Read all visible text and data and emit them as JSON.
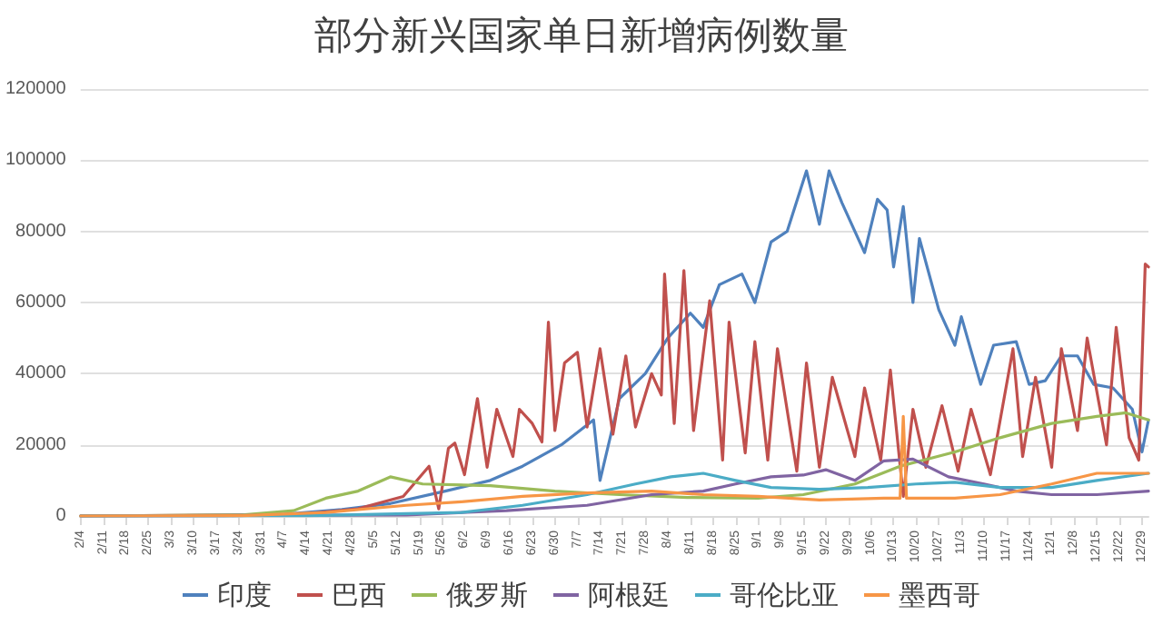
{
  "chart_data": {
    "type": "line",
    "title": "部分新兴国家单日新增病例数量",
    "xlim": [
      "--02-04",
      "--12-31"
    ],
    "xticks": [
      {
        "value": "--02-04",
        "label": "2/4"
      },
      {
        "value": "--02-11",
        "label": "2/11"
      },
      {
        "value": "--02-18",
        "label": "2/18"
      },
      {
        "value": "--02-25",
        "label": "2/25"
      },
      {
        "value": "--03-03",
        "label": "3/3"
      },
      {
        "value": "--03-10",
        "label": "3/10"
      },
      {
        "value": "--03-17",
        "label": "3/17"
      },
      {
        "value": "--03-24",
        "label": "3/24"
      },
      {
        "value": "--03-31",
        "label": "3/31"
      },
      {
        "value": "--04-07",
        "label": "4/7"
      },
      {
        "value": "--04-14",
        "label": "4/14"
      },
      {
        "value": "--04-21",
        "label": "4/21"
      },
      {
        "value": "--04-28",
        "label": "4/28"
      },
      {
        "value": "--05-05",
        "label": "5/5"
      },
      {
        "value": "--05-12",
        "label": "5/12"
      },
      {
        "value": "--05-19",
        "label": "5/19"
      },
      {
        "value": "--05-26",
        "label": "5/26"
      },
      {
        "value": "--06-02",
        "label": "6/2"
      },
      {
        "value": "--06-09",
        "label": "6/9"
      },
      {
        "value": "--06-16",
        "label": "6/16"
      },
      {
        "value": "--06-23",
        "label": "6/23"
      },
      {
        "value": "--06-30",
        "label": "6/30"
      },
      {
        "value": "--07-07",
        "label": "7/7"
      },
      {
        "value": "--07-14",
        "label": "7/14"
      },
      {
        "value": "--07-21",
        "label": "7/21"
      },
      {
        "value": "--07-28",
        "label": "7/28"
      },
      {
        "value": "--08-04",
        "label": "8/4"
      },
      {
        "value": "--08-11",
        "label": "8/11"
      },
      {
        "value": "--08-18",
        "label": "8/18"
      },
      {
        "value": "--08-25",
        "label": "8/25"
      },
      {
        "value": "--09-01",
        "label": "9/1"
      },
      {
        "value": "--09-08",
        "label": "9/8"
      },
      {
        "value": "--09-15",
        "label": "9/15"
      },
      {
        "value": "--09-22",
        "label": "9/22"
      },
      {
        "value": "--09-29",
        "label": "9/29"
      },
      {
        "value": "--10-06",
        "label": "10/6"
      },
      {
        "value": "--10-13",
        "label": "10/13"
      },
      {
        "value": "--10-20",
        "label": "10/20"
      },
      {
        "value": "--10-27",
        "label": "10/27"
      },
      {
        "value": "--11-03",
        "label": "11/3"
      },
      {
        "value": "--11-10",
        "label": "11/10"
      },
      {
        "value": "--11-17",
        "label": "11/17"
      },
      {
        "value": "--11-24",
        "label": "11/24"
      },
      {
        "value": "--12-01",
        "label": "12/1"
      },
      {
        "value": "--12-08",
        "label": "12/8"
      },
      {
        "value": "--12-15",
        "label": "12/15"
      },
      {
        "value": "--12-22",
        "label": "12/22"
      },
      {
        "value": "--12-29",
        "label": "12/29"
      }
    ],
    "ylim": [
      0,
      120000
    ],
    "yticks": [
      0,
      20000,
      40000,
      60000,
      80000,
      100000,
      120000
    ],
    "grid": "y",
    "legend": "bottom",
    "marker": "none",
    "line_style": "solid",
    "series": [
      {
        "name": "印度",
        "color": "#4f81bd",
        "x": [
          "--02-04",
          "--03-20",
          "--04-07",
          "--04-25",
          "--05-10",
          "--05-27",
          "--06-10",
          "--06-20",
          "--07-02",
          "--07-12",
          "--07-14",
          "--07-20",
          "--07-28",
          "--08-04",
          "--08-11",
          "--08-15",
          "--08-20",
          "--08-27",
          "--08-31",
          "--09-05",
          "--09-10",
          "--09-16",
          "--09-20",
          "--09-23",
          "--09-27",
          "--10-04",
          "--10-08",
          "--10-11",
          "--10-13",
          "--10-16",
          "--10-19",
          "--10-21",
          "--10-27",
          "--11-01",
          "--11-03",
          "--11-09",
          "--11-13",
          "--11-20",
          "--11-24",
          "--11-29",
          "--12-04",
          "--12-09",
          "--12-14",
          "--12-20",
          "--12-26",
          "--12-29",
          "--12-31"
        ],
        "values": [
          0,
          0,
          500,
          1800,
          3500,
          7000,
          10000,
          14000,
          20000,
          27000,
          10000,
          33000,
          40000,
          50000,
          57000,
          53000,
          65000,
          68000,
          60000,
          77000,
          80000,
          97000,
          82000,
          97000,
          88000,
          74000,
          89000,
          86000,
          70000,
          87000,
          60000,
          78000,
          58000,
          48000,
          56000,
          37000,
          48000,
          49000,
          37000,
          38000,
          45000,
          45000,
          37000,
          36000,
          30000,
          18000,
          27000
        ]
      },
      {
        "name": "巴西",
        "color": "#c0504d",
        "x": [
          "--02-04",
          "--04-12",
          "--04-30",
          "--05-14",
          "--05-22",
          "--05-25",
          "--05-28",
          "--05-30",
          "--06-02",
          "--06-06",
          "--06-09",
          "--06-12",
          "--06-17",
          "--06-19",
          "--06-23",
          "--06-26",
          "--06-28",
          "--06-30",
          "--07-03",
          "--07-07",
          "--07-10",
          "--07-14",
          "--07-18",
          "--07-22",
          "--07-25",
          "--07-30",
          "--08-02",
          "--08-03",
          "--08-06",
          "--08-09",
          "--08-12",
          "--08-17",
          "--08-21",
          "--08-23",
          "--08-28",
          "--08-31",
          "--09-04",
          "--09-07",
          "--09-13",
          "--09-16",
          "--09-20",
          "--09-24",
          "--10-01",
          "--10-04",
          "--10-09",
          "--10-12",
          "--10-16",
          "--10-19",
          "--10-23",
          "--10-28",
          "--11-02",
          "--11-06",
          "--11-12",
          "--11-19",
          "--11-22",
          "--11-26",
          "--12-01",
          "--12-04",
          "--12-09",
          "--12-12",
          "--12-18",
          "--12-21",
          "--12-25",
          "--12-28",
          "--12-30",
          "--12-31"
        ],
        "values": [
          0,
          400,
          2000,
          5500,
          14000,
          2000,
          19000,
          20500,
          11600,
          33000,
          13700,
          30000,
          16700,
          30000,
          26000,
          20800,
          54500,
          24000,
          43000,
          46000,
          25000,
          47000,
          23000,
          45000,
          25000,
          40000,
          34000,
          68000,
          26000,
          69000,
          24000,
          60500,
          15700,
          54500,
          17700,
          49000,
          15700,
          47000,
          12600,
          43000,
          13700,
          39000,
          16700,
          36000,
          15700,
          41000,
          5500,
          30000,
          13700,
          31000,
          12600,
          30000,
          11600,
          47000,
          16700,
          39000,
          13700,
          47000,
          24000,
          50000,
          20000,
          53000,
          22000,
          15700,
          70800,
          70000
        ]
      },
      {
        "name": "俄罗斯",
        "color": "#9bbb59",
        "x": [
          "--02-04",
          "--03-25",
          "--04-10",
          "--04-20",
          "--04-30",
          "--05-10",
          "--05-20",
          "--06-10",
          "--06-30",
          "--07-20",
          "--08-10",
          "--09-01",
          "--09-15",
          "--10-01",
          "--10-15",
          "--11-01",
          "--11-15",
          "--12-01",
          "--12-15",
          "--12-24",
          "--12-31"
        ],
        "values": [
          0,
          300,
          1500,
          5000,
          7000,
          11000,
          9000,
          8500,
          7000,
          6000,
          5200,
          5000,
          6000,
          9000,
          14000,
          18000,
          22000,
          26000,
          28000,
          29000,
          27000
        ]
      },
      {
        "name": "阿根廷",
        "color": "#8064a2",
        "x": [
          "--02-04",
          "--05-15",
          "--06-15",
          "--07-10",
          "--07-30",
          "--08-15",
          "--08-25",
          "--09-05",
          "--09-15",
          "--09-22",
          "--10-01",
          "--10-10",
          "--10-19",
          "--10-30",
          "--11-10",
          "--11-20",
          "--12-01",
          "--12-15",
          "--12-31"
        ],
        "values": [
          0,
          300,
          1500,
          3000,
          6000,
          7000,
          9000,
          11000,
          11500,
          13000,
          10000,
          15500,
          16000,
          11000,
          9000,
          7000,
          6000,
          6000,
          7000
        ]
      },
      {
        "name": "哥伦比亚",
        "color": "#4bacc6",
        "x": [
          "--02-04",
          "--04-15",
          "--06-01",
          "--06-20",
          "--07-10",
          "--07-25",
          "--08-05",
          "--08-15",
          "--08-25",
          "--09-05",
          "--09-20",
          "--10-05",
          "--10-20",
          "--11-01",
          "--11-15",
          "--12-01",
          "--12-15",
          "--12-31"
        ],
        "values": [
          0,
          100,
          1000,
          3000,
          6000,
          9000,
          11000,
          12000,
          10000,
          8000,
          7500,
          8000,
          9000,
          9500,
          8000,
          8000,
          10000,
          12000
        ]
      },
      {
        "name": "墨西哥",
        "color": "#f79646",
        "x": [
          "--02-04",
          "--03-25",
          "--04-20",
          "--05-15",
          "--06-01",
          "--06-20",
          "--07-10",
          "--07-30",
          "--08-15",
          "--09-01",
          "--09-20",
          "--10-10",
          "--10-15",
          "--10-16",
          "--10-17",
          "--11-01",
          "--11-15",
          "--12-01",
          "--12-15",
          "--12-31"
        ],
        "values": [
          0,
          100,
          1000,
          3000,
          4000,
          5500,
          6500,
          7000,
          6000,
          5500,
          4500,
          5000,
          5000,
          28000,
          5000,
          5000,
          6000,
          9000,
          12000,
          12000
        ]
      }
    ]
  }
}
